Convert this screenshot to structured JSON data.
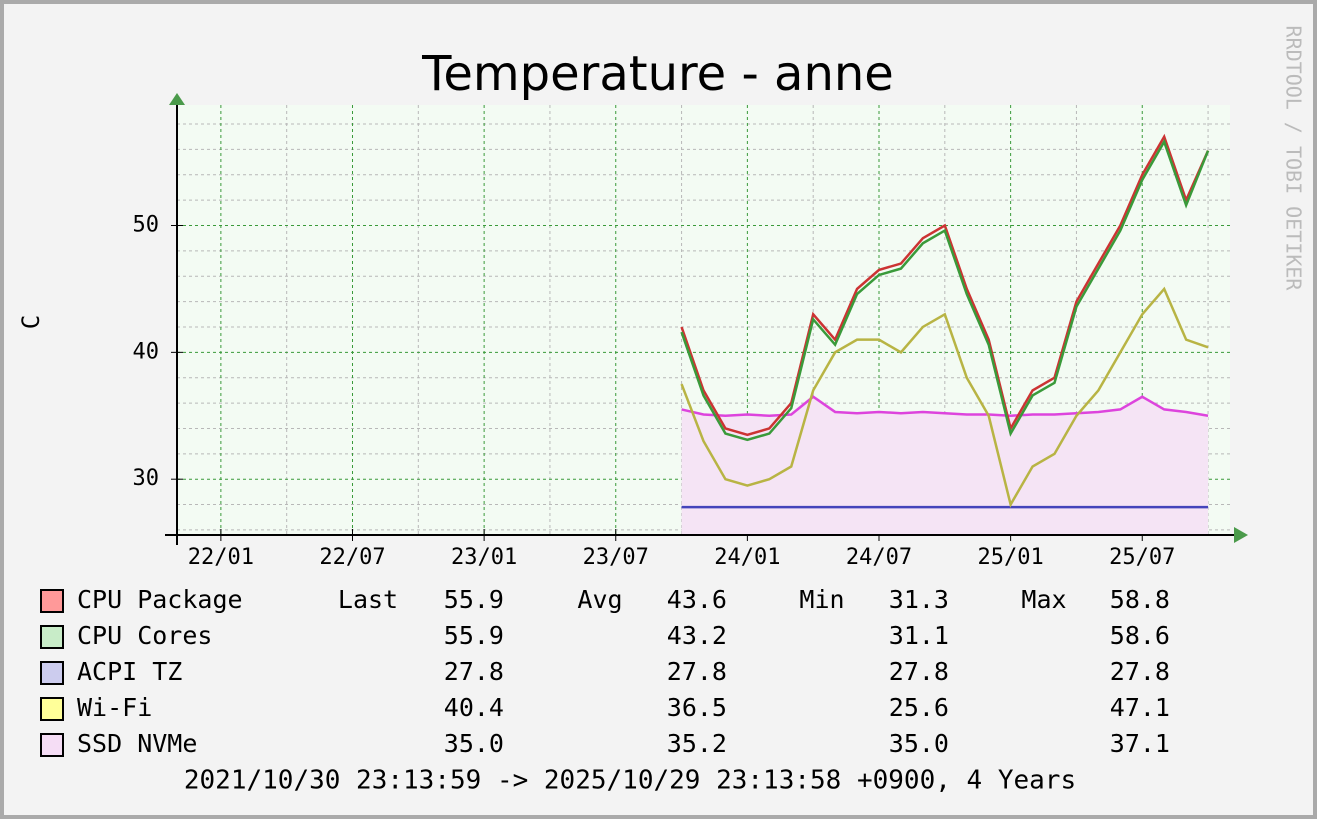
{
  "chart_data": {
    "type": "line",
    "title": "Temperature - anne",
    "y_label": "C",
    "watermark": "RRDTOOL / TOBI OETIKER",
    "footer": "2021/10/30 23:13:59 -> 2025/10/29 23:13:58 +0900, 4 Years",
    "x": [
      "23/10",
      "23/11",
      "23/12",
      "24/01",
      "24/02",
      "24/03",
      "24/04",
      "24/05",
      "24/06",
      "24/07",
      "24/08",
      "24/09",
      "24/10",
      "24/11",
      "24/12",
      "25/01",
      "25/02",
      "25/03",
      "25/04",
      "25/05",
      "25/06",
      "25/07",
      "25/08",
      "25/09",
      "25/10"
    ],
    "xlim": [
      "21/11",
      "25/11"
    ],
    "xticks": [
      "22/01",
      "22/07",
      "23/01",
      "23/07",
      "24/01",
      "24/07",
      "25/01",
      "25/07"
    ],
    "minor_xticks": [
      "22/04",
      "22/10",
      "23/04",
      "23/10",
      "24/04",
      "24/10",
      "25/04",
      "25/10"
    ],
    "ylim": [
      25.6,
      59.5
    ],
    "yticks": [
      30,
      40,
      50
    ],
    "minor_yticks": [
      26,
      28,
      32,
      34,
      36,
      38,
      42,
      44,
      46,
      48,
      52,
      54,
      56,
      58
    ],
    "grid": true,
    "stat_headers": [
      "Last",
      "Avg",
      "Min",
      "Max"
    ],
    "series": [
      {
        "name": "CPU Package",
        "color": "#cc3333",
        "swatch": "#ff9999",
        "stats": [
          "55.9",
          "43.6",
          "31.3",
          "58.8"
        ],
        "values": [
          42,
          37,
          34,
          33.5,
          34,
          36,
          43,
          41,
          45,
          46.5,
          47,
          49,
          50,
          45,
          41,
          34,
          37,
          38,
          44,
          47,
          50,
          54,
          57,
          52,
          55.9
        ]
      },
      {
        "name": "CPU Cores",
        "color": "#3a9a3a",
        "swatch": "#c8ecc8",
        "stats": [
          "55.9",
          "43.2",
          "31.1",
          "58.6"
        ],
        "values": [
          41.6,
          36.6,
          33.6,
          33.1,
          33.6,
          35.6,
          42.6,
          40.6,
          44.6,
          46.1,
          46.6,
          48.6,
          49.6,
          44.6,
          40.6,
          33.6,
          36.6,
          37.6,
          43.6,
          46.6,
          49.6,
          53.6,
          56.6,
          51.6,
          55.9
        ]
      },
      {
        "name": "ACPI TZ",
        "color": "#4444bb",
        "swatch": "#ccccee",
        "stats": [
          "27.8",
          "27.8",
          "27.8",
          "27.8"
        ],
        "values": [
          27.8,
          27.8,
          27.8,
          27.8,
          27.8,
          27.8,
          27.8,
          27.8,
          27.8,
          27.8,
          27.8,
          27.8,
          27.8,
          27.8,
          27.8,
          27.8,
          27.8,
          27.8,
          27.8,
          27.8,
          27.8,
          27.8,
          27.8,
          27.8,
          27.8
        ]
      },
      {
        "name": "Wi-Fi",
        "color": "#b8b444",
        "swatch": "#ffff99",
        "stats": [
          "40.4",
          "36.5",
          "25.6",
          "47.1"
        ],
        "values": [
          37.5,
          33,
          30,
          29.5,
          30,
          31,
          37,
          40,
          41,
          41,
          40,
          42,
          43,
          38,
          35,
          28,
          31,
          32,
          35,
          37,
          40,
          43,
          45,
          41,
          40.4
        ]
      },
      {
        "name": "SSD NVMe",
        "color": "#dd44dd",
        "swatch": "#f5ddf5",
        "area": "#f5e4f5",
        "stats": [
          "35.0",
          "35.2",
          "35.0",
          "37.1"
        ],
        "values": [
          35.5,
          35.1,
          35.0,
          35.1,
          35.0,
          35.1,
          36.5,
          35.3,
          35.2,
          35.3,
          35.2,
          35.3,
          35.2,
          35.1,
          35.1,
          35.0,
          35.1,
          35.1,
          35.2,
          35.3,
          35.5,
          36.5,
          35.5,
          35.3,
          35.0
        ]
      }
    ]
  }
}
